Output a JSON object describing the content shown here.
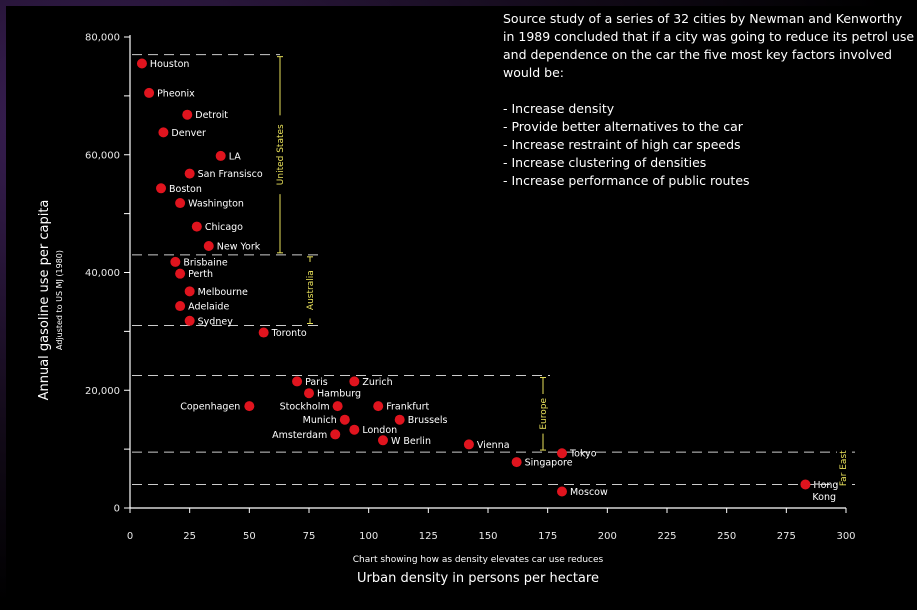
{
  "chart_data": {
    "type": "scatter",
    "title": "",
    "subtitle": "Chart showing how as density elevates car use reduces",
    "xlabel": "Urban density in persons per hectare",
    "ylabel": "Annual gasoline use per capita",
    "ylabel_sub": "Adjusted to US MJ (1980)",
    "xlim": [
      0,
      300
    ],
    "ylim": [
      0,
      80000
    ],
    "x_ticks": [
      0,
      25,
      50,
      75,
      100,
      125,
      150,
      175,
      200,
      225,
      250,
      275,
      300
    ],
    "y_ticks": [
      0,
      20000,
      40000,
      60000,
      80000
    ],
    "y_tick_labels": [
      "0",
      "20,000",
      "40,000",
      "60,000",
      "80,000"
    ],
    "grid": false,
    "marker_color": "#e0141e",
    "points": [
      {
        "label": "Houston",
        "x": 5,
        "y": 75500
      },
      {
        "label": "Pheonix",
        "x": 8,
        "y": 70500
      },
      {
        "label": "Detroit",
        "x": 24,
        "y": 66800
      },
      {
        "label": "Denver",
        "x": 14,
        "y": 63800
      },
      {
        "label": "LA",
        "x": 38,
        "y": 59800
      },
      {
        "label": "San Fransisco",
        "x": 25,
        "y": 56800
      },
      {
        "label": "Boston",
        "x": 13,
        "y": 54300
      },
      {
        "label": "Washington",
        "x": 21,
        "y": 51800
      },
      {
        "label": "Chicago",
        "x": 28,
        "y": 47800
      },
      {
        "label": "New York",
        "x": 33,
        "y": 44500
      },
      {
        "label": "Brisbaine",
        "x": 19,
        "y": 41800
      },
      {
        "label": "Perth",
        "x": 21,
        "y": 39800
      },
      {
        "label": "Melbourne",
        "x": 25,
        "y": 36800
      },
      {
        "label": "Adelaide",
        "x": 21,
        "y": 34300
      },
      {
        "label": "Sydney",
        "x": 25,
        "y": 31800
      },
      {
        "label": "Toronto",
        "x": 56,
        "y": 29800
      },
      {
        "label": "Paris",
        "x": 70,
        "y": 21500
      },
      {
        "label": "Zurich",
        "x": 94,
        "y": 21500
      },
      {
        "label": "Hamburg",
        "x": 75,
        "y": 19500
      },
      {
        "label": "Copenhagen",
        "x": 50,
        "y": 17300
      },
      {
        "label": "Stockholm",
        "x": 87,
        "y": 17300
      },
      {
        "label": "Frankfurt",
        "x": 104,
        "y": 17300
      },
      {
        "label": "Munich",
        "x": 90,
        "y": 15000
      },
      {
        "label": "Brussels",
        "x": 113,
        "y": 15000
      },
      {
        "label": "London",
        "x": 94,
        "y": 13300
      },
      {
        "label": "Amsterdam",
        "x": 86,
        "y": 12500
      },
      {
        "label": "W Berlin",
        "x": 106,
        "y": 11500
      },
      {
        "label": "Vienna",
        "x": 142,
        "y": 10800
      },
      {
        "label": "Tokyo",
        "x": 181,
        "y": 9300
      },
      {
        "label": "Singapore",
        "x": 162,
        "y": 7800
      },
      {
        "label": "Hong Kong",
        "x": 283,
        "y": 4000
      },
      {
        "label": "Moscow",
        "x": 181,
        "y": 2800
      }
    ],
    "regions": [
      {
        "name": "United States",
        "y_top": 77000,
        "y_bottom": 43000
      },
      {
        "name": "Australia",
        "y_top": 43000,
        "y_bottom": 31000
      },
      {
        "name": "Europe",
        "y_top": 22500,
        "y_bottom": 9500
      },
      {
        "name": "Far East",
        "y_top": 9500,
        "y_bottom": 4000
      }
    ],
    "colors": {
      "point": "#e0141e",
      "region": "#e8e05a",
      "dash": "#cccccc",
      "text": "#ffffff"
    }
  },
  "note": {
    "intro": "Source study of a series of 32 cities by Newman and Kenworthy in 1989 concluded that if a city was going to reduce its petrol use and dependence on the car the five most key factors involved would be:",
    "items": [
      "- Increase density",
      "- Provide better alternatives to the car",
      "- Increase restraint of high car speeds",
      "- Increase clustering of densities",
      "- Increase performance of public routes"
    ]
  }
}
